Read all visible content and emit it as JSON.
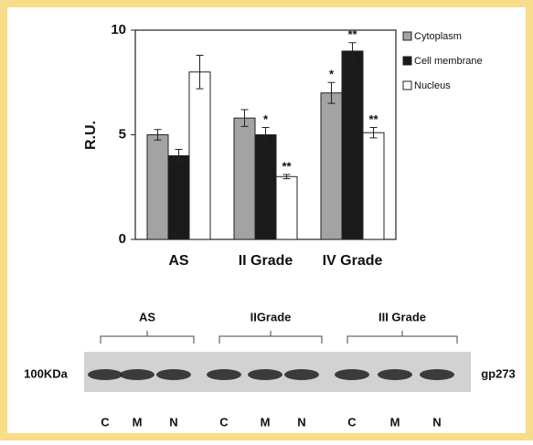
{
  "chart_data": {
    "type": "bar",
    "categories": [
      "AS",
      "II Grade",
      "IV Grade"
    ],
    "ylabel": "R.U.",
    "ylim": [
      0,
      10
    ],
    "yticks": [
      0,
      5,
      10
    ],
    "series": [
      {
        "name": "Cytoplasm",
        "color": "#a3a3a3",
        "values": [
          5.0,
          5.8,
          7.0
        ],
        "errors": [
          0.25,
          0.4,
          0.5
        ],
        "markers": [
          null,
          null,
          "*"
        ]
      },
      {
        "name": "Cell membrane",
        "color": "#1a1a1a",
        "values": [
          4.0,
          5.0,
          9.0
        ],
        "errors": [
          0.3,
          0.35,
          0.4
        ],
        "markers": [
          null,
          "*",
          "**"
        ]
      },
      {
        "name": "Nucleus",
        "color": "#ffffff",
        "values": [
          8.0,
          3.0,
          5.1
        ],
        "errors": [
          0.8,
          0.1,
          0.25
        ],
        "markers": [
          null,
          "**",
          "**"
        ]
      }
    ]
  },
  "blot": {
    "groups": [
      "AS",
      "IIGrade",
      "III Grade"
    ],
    "lanes": [
      "C",
      "M",
      "N",
      "C",
      "M",
      "N",
      "C",
      "M",
      "N"
    ],
    "marker": "100KDa",
    "protein": "gp273"
  }
}
